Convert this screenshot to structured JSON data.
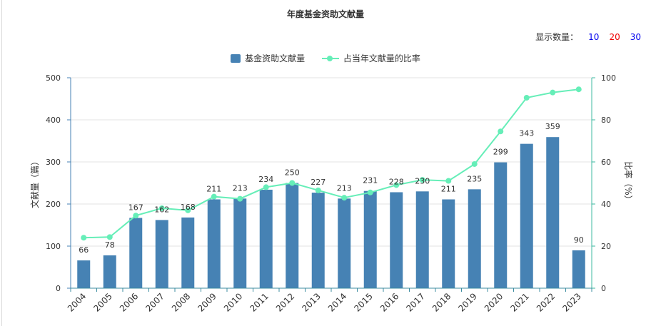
{
  "title": "年度基金资助文献量",
  "display_count": {
    "label": "显示数量：",
    "options": [
      {
        "label": "10",
        "color": "#0000ee"
      },
      {
        "label": "20",
        "color": "#ee0000"
      },
      {
        "label": "30",
        "color": "#0000ee"
      }
    ]
  },
  "colors": {
    "bar": "#4682b4",
    "line": "#66eeb8",
    "axis_left": "#4682b4",
    "axis_right": "#3cb8a0",
    "grid": "#e3e3e3"
  },
  "chart_data": {
    "type": "bar",
    "categories": [
      "2004",
      "2005",
      "2006",
      "2007",
      "2008",
      "2009",
      "2010",
      "2011",
      "2012",
      "2013",
      "2014",
      "2015",
      "2016",
      "2017",
      "2018",
      "2019",
      "2020",
      "2021",
      "2022",
      "2023"
    ],
    "series": [
      {
        "name": "基金资助文献量",
        "type": "bar",
        "axis": "left",
        "values": [
          66,
          78,
          167,
          162,
          168,
          211,
          213,
          234,
          250,
          227,
          213,
          231,
          228,
          230,
          211,
          235,
          299,
          343,
          359,
          90
        ]
      },
      {
        "name": "占当年文献量的比率",
        "type": "line",
        "axis": "right",
        "values": [
          24.0,
          24.3,
          34.5,
          38.0,
          37.0,
          43.5,
          42.5,
          48.0,
          50.0,
          46.5,
          43.0,
          45.5,
          49.0,
          51.5,
          51.0,
          59.0,
          74.5,
          90.5,
          93.0,
          94.5
        ]
      }
    ],
    "ylabel": "文献量（篇）",
    "y2label": "比率（%）",
    "ylim": [
      0,
      500
    ],
    "y2lim": [
      0,
      100
    ],
    "yticks": [
      0,
      100,
      200,
      300,
      400,
      500
    ],
    "y2ticks": [
      0,
      20,
      40,
      60,
      80,
      100
    ],
    "grid": true,
    "legend_position": "top-center",
    "data_labels": true
  }
}
